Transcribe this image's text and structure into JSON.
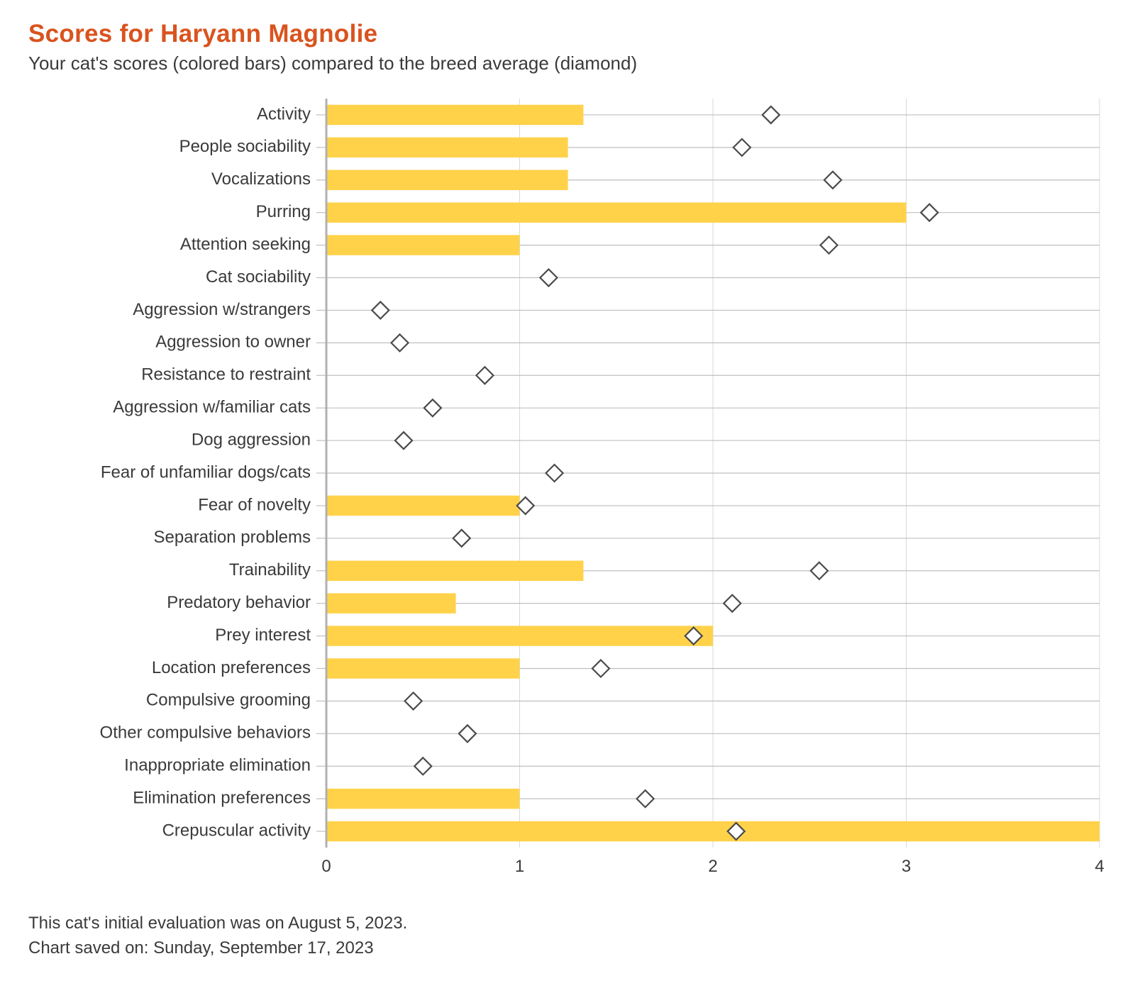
{
  "title": "Scores for Haryann Magnolie",
  "subtitle": "Your cat's scores (colored bars) compared to the breed average (diamond)",
  "footer_line1": "This cat's initial evaluation was on August 5, 2023.",
  "footer_line2": "Chart saved on: Sunday, September 17, 2023",
  "chart": {
    "type": "bar-with-marker",
    "xlim": [
      0,
      4
    ],
    "xticks": [
      0,
      1,
      2,
      3,
      4
    ],
    "xtick_labels": [
      "0",
      "1",
      "2",
      "3",
      "4"
    ],
    "bar_color": "#ffd24a",
    "grid_color": "#b5b5b5",
    "axis_color": "#b0b0b0",
    "marker_stroke": "#4a4a4a",
    "marker_fill": "#ffffff",
    "label_color": "#3a3a3a",
    "label_fontsize": 24,
    "tick_fontsize": 24,
    "bar_height_ratio": 0.62,
    "marker_size": 12,
    "rows": [
      {
        "label": "Activity",
        "value": 1.33,
        "avg": 2.3
      },
      {
        "label": "People sociability",
        "value": 1.25,
        "avg": 2.15
      },
      {
        "label": "Vocalizations",
        "value": 1.25,
        "avg": 2.62
      },
      {
        "label": "Purring",
        "value": 3.0,
        "avg": 3.12
      },
      {
        "label": "Attention seeking",
        "value": 1.0,
        "avg": 2.6
      },
      {
        "label": "Cat sociability",
        "value": 0.0,
        "avg": 1.15
      },
      {
        "label": "Aggression w/strangers",
        "value": 0.0,
        "avg": 0.28
      },
      {
        "label": "Aggression to owner",
        "value": 0.0,
        "avg": 0.38
      },
      {
        "label": "Resistance to restraint",
        "value": 0.0,
        "avg": 0.82
      },
      {
        "label": "Aggression w/familiar cats",
        "value": 0.0,
        "avg": 0.55
      },
      {
        "label": "Dog aggression",
        "value": 0.0,
        "avg": 0.4
      },
      {
        "label": "Fear of unfamiliar dogs/cats",
        "value": 0.0,
        "avg": 1.18
      },
      {
        "label": "Fear of novelty",
        "value": 1.0,
        "avg": 1.03
      },
      {
        "label": "Separation problems",
        "value": 0.0,
        "avg": 0.7
      },
      {
        "label": "Trainability",
        "value": 1.33,
        "avg": 2.55
      },
      {
        "label": "Predatory behavior",
        "value": 0.67,
        "avg": 2.1
      },
      {
        "label": "Prey interest",
        "value": 2.0,
        "avg": 1.9
      },
      {
        "label": "Location preferences",
        "value": 1.0,
        "avg": 1.42
      },
      {
        "label": "Compulsive grooming",
        "value": 0.0,
        "avg": 0.45
      },
      {
        "label": "Other compulsive behaviors",
        "value": 0.0,
        "avg": 0.73
      },
      {
        "label": "Inappropriate elimination",
        "value": 0.0,
        "avg": 0.5
      },
      {
        "label": "Elimination preferences",
        "value": 1.0,
        "avg": 1.65
      },
      {
        "label": "Crepuscular activity",
        "value": 4.0,
        "avg": 2.12
      }
    ]
  }
}
